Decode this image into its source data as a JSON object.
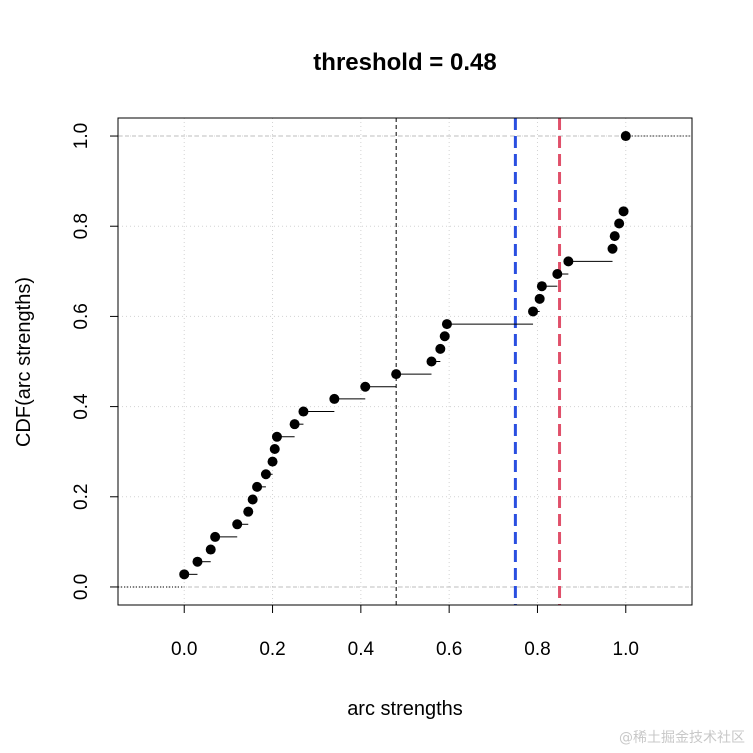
{
  "chart_data": {
    "type": "step",
    "title": "threshold =  0.48",
    "xlabel": "arc strengths",
    "ylabel": "CDF(arc strengths)",
    "xlim": [
      -0.15,
      1.15
    ],
    "ylim": [
      -0.04,
      1.04
    ],
    "grid": true,
    "x_ticks": [
      0.0,
      0.2,
      0.4,
      0.6,
      0.8,
      1.0
    ],
    "x_tick_labels": [
      "0.0",
      "0.2",
      "0.4",
      "0.6",
      "0.8",
      "1.0"
    ],
    "y_ticks": [
      0.0,
      0.2,
      0.4,
      0.6,
      0.8,
      1.0
    ],
    "y_tick_labels": [
      "0.0",
      "0.2",
      "0.4",
      "0.6",
      "0.8",
      "1.0"
    ],
    "vertical_lines": [
      {
        "x": 0.48,
        "color": "#000000",
        "style": "dashed-thin"
      },
      {
        "x": 0.75,
        "color": "#2a4fe0",
        "style": "dashed-thick"
      },
      {
        "x": 0.85,
        "color": "#e0506a",
        "style": "dashed-thick"
      }
    ],
    "points": [
      {
        "x": 0.0,
        "y": 0.028
      },
      {
        "x": 0.03,
        "y": 0.056
      },
      {
        "x": 0.06,
        "y": 0.083
      },
      {
        "x": 0.07,
        "y": 0.111
      },
      {
        "x": 0.12,
        "y": 0.139
      },
      {
        "x": 0.145,
        "y": 0.167
      },
      {
        "x": 0.155,
        "y": 0.194
      },
      {
        "x": 0.165,
        "y": 0.222
      },
      {
        "x": 0.185,
        "y": 0.25
      },
      {
        "x": 0.2,
        "y": 0.278
      },
      {
        "x": 0.205,
        "y": 0.306
      },
      {
        "x": 0.21,
        "y": 0.333
      },
      {
        "x": 0.25,
        "y": 0.361
      },
      {
        "x": 0.27,
        "y": 0.389
      },
      {
        "x": 0.34,
        "y": 0.417
      },
      {
        "x": 0.41,
        "y": 0.444
      },
      {
        "x": 0.48,
        "y": 0.472
      },
      {
        "x": 0.56,
        "y": 0.5
      },
      {
        "x": 0.58,
        "y": 0.528
      },
      {
        "x": 0.59,
        "y": 0.556
      },
      {
        "x": 0.595,
        "y": 0.583
      },
      {
        "x": 0.79,
        "y": 0.611
      },
      {
        "x": 0.805,
        "y": 0.639
      },
      {
        "x": 0.81,
        "y": 0.667
      },
      {
        "x": 0.845,
        "y": 0.694
      },
      {
        "x": 0.87,
        "y": 0.722
      },
      {
        "x": 0.97,
        "y": 0.75
      },
      {
        "x": 0.975,
        "y": 0.778
      },
      {
        "x": 0.985,
        "y": 0.806
      },
      {
        "x": 0.995,
        "y": 0.833
      },
      {
        "x": 1.0,
        "y": 1.0
      }
    ]
  },
  "watermark": "@稀土掘金技术社区"
}
